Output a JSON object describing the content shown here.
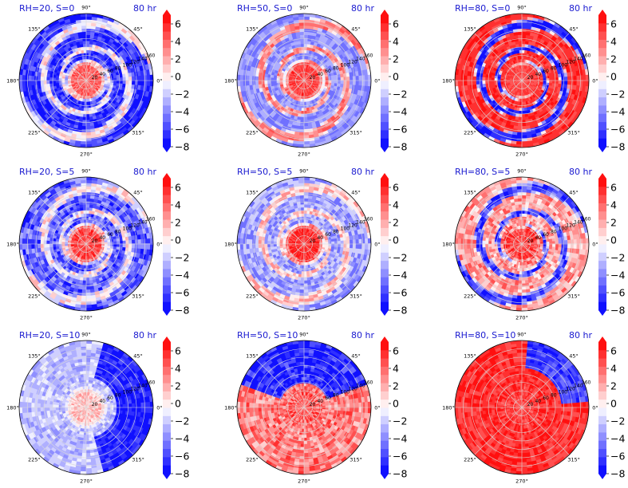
{
  "colormap": {
    "name": "bwr",
    "levels": [
      -8,
      -7,
      -6,
      -5,
      -4,
      -3,
      -2,
      -1,
      0,
      1,
      2,
      3,
      4,
      5,
      6,
      7
    ],
    "colorbar_ticks": [
      "6",
      "4",
      "2",
      "0",
      "−2",
      "−4",
      "−6",
      "−8"
    ],
    "extend": "both",
    "colors": {
      "low": "#0000ff",
      "mid": "#ffffff",
      "high": "#ff0000"
    }
  },
  "angle_labels": [
    "90°",
    "45°",
    "0°",
    "315°",
    "270°",
    "225°",
    "180°",
    "135°"
  ],
  "radial_labels": [
    "20",
    "40",
    "60",
    "80",
    "100",
    "120",
    "140",
    "160"
  ],
  "chart_data": [
    {
      "type": "heatmap",
      "title": "RH=20, S=0",
      "time_label": "80 hr",
      "pattern": {
        "core": 5,
        "background": -6.5,
        "spiral": 0.5,
        "noise": 2.0
      }
    },
    {
      "type": "heatmap",
      "title": "RH=50, S=0",
      "time_label": "80 hr",
      "pattern": {
        "core": 6,
        "background": -3.5,
        "spiral": 4.0,
        "noise": 1.5
      }
    },
    {
      "type": "heatmap",
      "title": "RH=80, S=0",
      "time_label": "80 hr",
      "pattern": {
        "core": 6,
        "background": 6.5,
        "spiral": -7.0,
        "noise": 1.0
      }
    },
    {
      "type": "heatmap",
      "title": "RH=20, S=5",
      "time_label": "80 hr",
      "pattern": {
        "core": 6,
        "background": -5.0,
        "spiral": 0.5,
        "noise": 2.5
      }
    },
    {
      "type": "heatmap",
      "title": "RH=50, S=5",
      "time_label": "80 hr",
      "pattern": {
        "core": 7,
        "background": -3.0,
        "spiral": 2.0,
        "noise": 2.0
      }
    },
    {
      "type": "heatmap",
      "title": "RH=80, S=5",
      "time_label": "80 hr",
      "pattern": {
        "core": 6,
        "background": 3.0,
        "spiral": -6.0,
        "noise": 2.5
      }
    },
    {
      "type": "heatmap",
      "title": "RH=20, S=10",
      "time_label": "80 hr",
      "pattern": {
        "core": 2,
        "background": -2.0,
        "east": -7.0,
        "noise": 1.5
      }
    },
    {
      "type": "heatmap",
      "title": "RH=50, S=10",
      "time_label": "80 hr",
      "pattern": {
        "core": 5,
        "background": 4.0,
        "north": -7.0,
        "noise": 2.5
      }
    },
    {
      "type": "heatmap",
      "title": "RH=80, S=10",
      "time_label": "80 hr",
      "pattern": {
        "core": 6,
        "background": 6.5,
        "northeast": -6.0,
        "noise": 1.5
      }
    }
  ]
}
